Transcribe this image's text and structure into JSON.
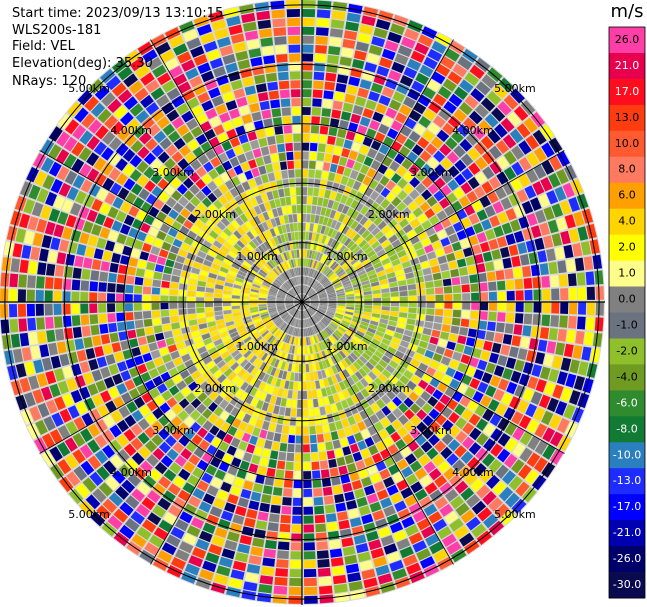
{
  "header": {
    "start_time": "Start time: 2023/09/13 13:10:15",
    "instrument": "WLS200s-181",
    "field": "Field: VEL",
    "elevation": "Elevation(deg): 35.30",
    "nrays": "NRays: 120"
  },
  "chart_data": {
    "type": "heatmap",
    "projection": "polar-ppi",
    "field": "VEL",
    "units": "m/s",
    "n_rays": 120,
    "range_rings_km": [
      1,
      2,
      3,
      4,
      5
    ],
    "range_labels": [
      "1.00km",
      "2.00km",
      "3.00km",
      "4.00km",
      "5.00km"
    ],
    "max_range_km": 5.1,
    "colorbar": {
      "label": "m/s",
      "ticks": [
        "26.0",
        "21.0",
        "17.0",
        "13.0",
        "10.0",
        "8.0",
        "6.0",
        "4.0",
        "2.0",
        "1.0",
        "0.0",
        "-1.0",
        "-2.0",
        "-4.0",
        "-6.0",
        "-8.0",
        "-10.0",
        "-13.0",
        "-17.0",
        "-21.0",
        "-26.0",
        "-30.0"
      ],
      "colors": [
        "#ff3ea8",
        "#e8004e",
        "#ff0d1f",
        "#ff3b10",
        "#ff5a30",
        "#ff7a60",
        "#ffa000",
        "#ffd400",
        "#ffff00",
        "#fffd8a",
        "#808080",
        "#6b7280",
        "#8fbf2a",
        "#6f9b22",
        "#2e8b2e",
        "#117a33",
        "#2a7fbf",
        "#1e2cff",
        "#0000ff",
        "#0000b0",
        "#00006a",
        "#0a0a50"
      ]
    },
    "notes": "Near-range ring ~0-2.2km: gray/yellow/green (low |v|); beyond ~2.2km noisy multicolor speckle."
  }
}
